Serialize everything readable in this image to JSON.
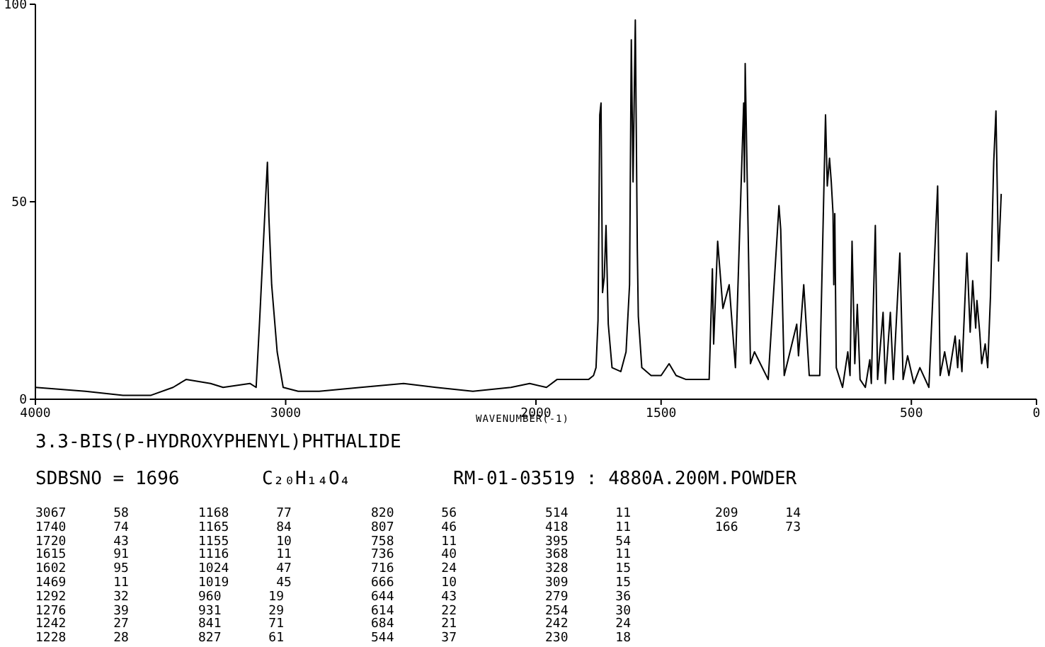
{
  "chart_data": {
    "type": "line",
    "title": "3.3-BIS(P-HYDROXYPHENYL)PHTHALIDE",
    "subtitle": "SDBSNO = 1696",
    "xlabel": "WAVENUMBER(-1)",
    "xlim": [
      4000,
      0
    ],
    "xticks": [
      4000,
      3000,
      2000,
      1500,
      500,
      0
    ],
    "ylim": [
      0,
      100
    ],
    "yticks": [
      0,
      50,
      100
    ],
    "grid": false,
    "legend": false,
    "marker": "none",
    "line_style": "solid",
    "series": [
      {
        "color": "#000000",
        "x": [
          4000,
          3800,
          3650,
          3538,
          3450,
          3398,
          3300,
          3250,
          3143,
          3118,
          3104,
          3084,
          3073,
          3067,
          3056,
          3034,
          3010,
          2950,
          2866,
          2700,
          2529,
          2400,
          2252,
          2100,
          2025,
          1958,
          1916,
          1790,
          1770,
          1760,
          1752,
          1745,
          1740,
          1734,
          1727,
          1720,
          1711,
          1696,
          1661,
          1640,
          1626,
          1619,
          1612,
          1603,
          1595,
          1591,
          1577,
          1540,
          1500,
          1468,
          1440,
          1400,
          1350,
          1308,
          1295,
          1290,
          1274,
          1253,
          1228,
          1203,
          1170,
          1167,
          1164,
          1143,
          1127,
          1072,
          1029,
          1022,
          1008,
          958,
          951,
          930,
          908,
          866,
          843,
          836,
          827,
          820,
          813,
          810,
          806,
          800,
          775,
          754,
          745,
          737,
          726,
          716,
          705,
          684,
          666,
          660,
          644,
          635,
          613,
          604,
          584,
          572,
          546,
          533,
          515,
          490,
          466,
          430,
          395,
          385,
          367,
          350,
          325,
          315,
          308,
          298,
          278,
          265,
          255,
          243,
          238,
          227,
          219,
          205,
          195,
          184,
          171,
          162,
          152,
          141
        ],
        "values": [
          3,
          2,
          1,
          1,
          3,
          5,
          4,
          3,
          4,
          3,
          20,
          46,
          60,
          46,
          29,
          12,
          3,
          2,
          2,
          3,
          4,
          3,
          2,
          3,
          4,
          3,
          5,
          5,
          6,
          8,
          20,
          72,
          75,
          27,
          31,
          44,
          19,
          8,
          7,
          12,
          29,
          91,
          55,
          96,
          38,
          21,
          8,
          6,
          6,
          9,
          6,
          5,
          5,
          5,
          33,
          14,
          40,
          23,
          29,
          8,
          75,
          55,
          85,
          9,
          12,
          5,
          49,
          43,
          6,
          19,
          11,
          29,
          6,
          6,
          72,
          54,
          61,
          55,
          47,
          29,
          47,
          8,
          3,
          12,
          6,
          40,
          9,
          24,
          5,
          3,
          10,
          4,
          44,
          5,
          22,
          4,
          22,
          5,
          37,
          5,
          11,
          4,
          8,
          3,
          54,
          6,
          12,
          6,
          16,
          8,
          15,
          7,
          37,
          17,
          30,
          18,
          25,
          17,
          9,
          14,
          8,
          26,
          60,
          73,
          35,
          52
        ]
      }
    ],
    "annotations": [
      "C₂₀H₁₄O₄",
      "RM-01-03519 : 4880A.200M.POWDER",
      "3067 58",
      "1740 74",
      "1720 43",
      "1615 91",
      "1602 95",
      "1469 11",
      "1292 32",
      "1276 39",
      "1242 27",
      "1228 28",
      "1168 77",
      "1165 84",
      "1155 10",
      "1116 11",
      "1024 47",
      "1019 45",
      "960 19",
      "931 29",
      "841 71",
      "827 61",
      "820 56",
      "807 46",
      "758 11",
      "736 40",
      "716 24",
      "666 10",
      "644 43",
      "614 22",
      "684 21",
      "544 37",
      "514 11",
      "418 11",
      "395 54",
      "368 11",
      "328 15",
      "309 15",
      "279 36",
      "254 30",
      "242 24",
      "230 18",
      "209 14",
      "166 73"
    ]
  }
}
